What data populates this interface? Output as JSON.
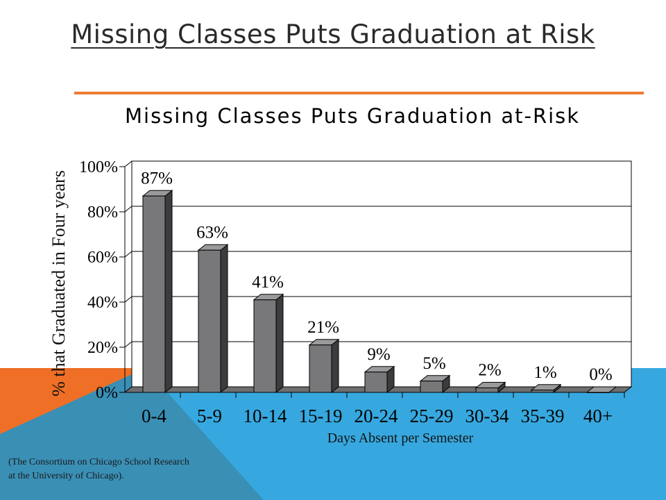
{
  "slide": {
    "title": "Missing Classes Puts Graduation at Risk",
    "source_line1": "(The Consortium on Chicago School Research",
    "source_line2": "at the University of Chicago)."
  },
  "colors": {
    "accent_orange": "#ee7a33",
    "band_blue": "#37a8df",
    "band_orange": "#ef6f26",
    "band_teal": "#3a8fb5",
    "bar_front": "#78787a",
    "bar_top": "#9a9a9c",
    "bar_side": "#3c3c3e"
  },
  "chart_data": {
    "type": "bar",
    "title": "Missing Classes Puts Graduation at-Risk",
    "xlabel": "Days Absent per Semester",
    "ylabel": "% that Graduated in Four years",
    "categories": [
      "0-4",
      "5-9",
      "10-14",
      "15-19",
      "20-24",
      "25-29",
      "30-34",
      "35-39",
      "40+"
    ],
    "values": [
      87,
      63,
      41,
      21,
      9,
      5,
      2,
      1,
      0
    ],
    "data_labels": [
      "87%",
      "63%",
      "41%",
      "21%",
      "9%",
      "5%",
      "2%",
      "1%",
      "0%"
    ],
    "ylim": [
      0,
      100
    ],
    "yticks": [
      0,
      20,
      40,
      60,
      80,
      100
    ],
    "ytick_labels": [
      "0%",
      "20%",
      "40%",
      "60%",
      "80%",
      "100%"
    ],
    "grid": true,
    "legend": false,
    "style": "3d"
  }
}
